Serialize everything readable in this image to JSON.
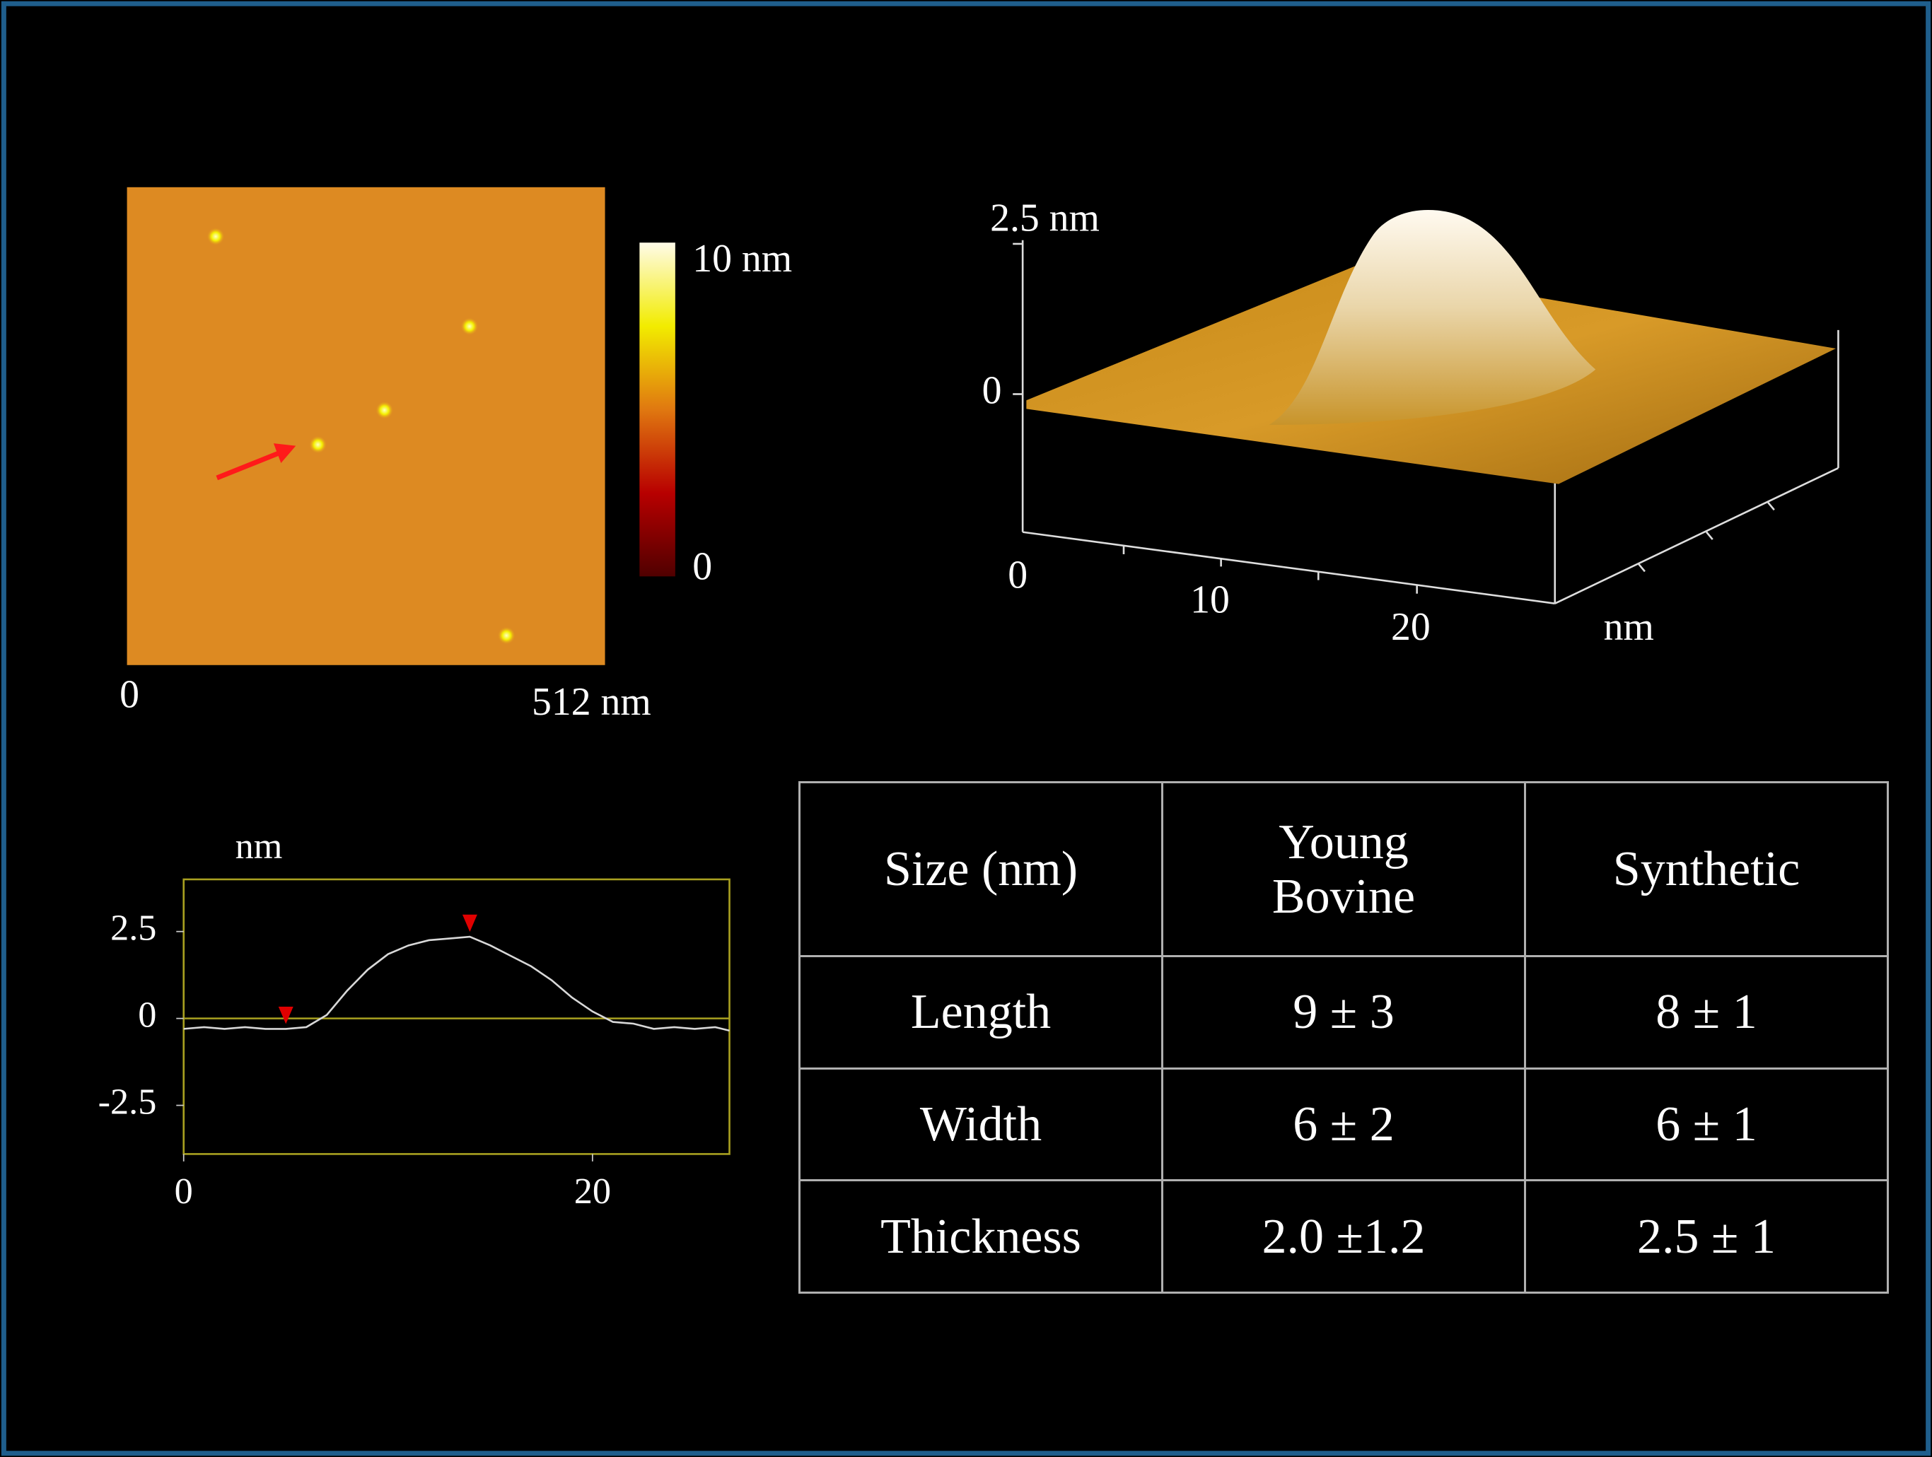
{
  "afm_image": {
    "x_labels": [
      "0",
      "512 nm"
    ],
    "colorbar_labels": [
      "10 nm",
      "0"
    ]
  },
  "surface_3d": {
    "z_labels": [
      "2.5 nm",
      "0"
    ],
    "x_labels": [
      "0",
      "10",
      "20"
    ],
    "unit": "nm"
  },
  "chart_data": {
    "type": "line",
    "ylabel": "nm",
    "x": [
      0,
      1,
      2,
      3,
      4,
      5,
      6,
      7,
      8,
      9,
      10,
      11,
      12,
      13,
      14,
      15,
      16,
      17,
      18,
      19,
      20,
      21,
      22,
      23,
      24,
      25,
      26,
      26.7
    ],
    "series": [
      {
        "color": "#d8d8d8",
        "values": [
          -0.3,
          -0.25,
          -0.3,
          -0.25,
          -0.3,
          -0.3,
          -0.25,
          0.1,
          0.8,
          1.4,
          1.85,
          2.1,
          2.25,
          2.3,
          2.35,
          2.1,
          1.8,
          1.5,
          1.1,
          0.6,
          0.2,
          -0.1,
          -0.15,
          -0.3,
          -0.25,
          -0.3,
          -0.25,
          -0.35
        ]
      }
    ],
    "markers_x": [
      5,
      14
    ],
    "marker_color": "#e00000",
    "frame_color": "#a8a020",
    "xlim": [
      0,
      26.7
    ],
    "ylim": [
      -3.9,
      4.0
    ],
    "xticks": [
      0,
      20
    ],
    "yticks": [
      -2.5,
      0,
      2.5
    ]
  },
  "table": {
    "header": [
      "Size (nm)",
      "Young Bovine",
      "Synthetic"
    ],
    "rows": [
      [
        "Length",
        "9 ± 3",
        "8 ± 1"
      ],
      [
        "Width",
        "6 ± 2",
        "6 ± 1"
      ],
      [
        "Thickness",
        "2.0 ±1.2",
        "2.5 ± 1"
      ]
    ]
  }
}
